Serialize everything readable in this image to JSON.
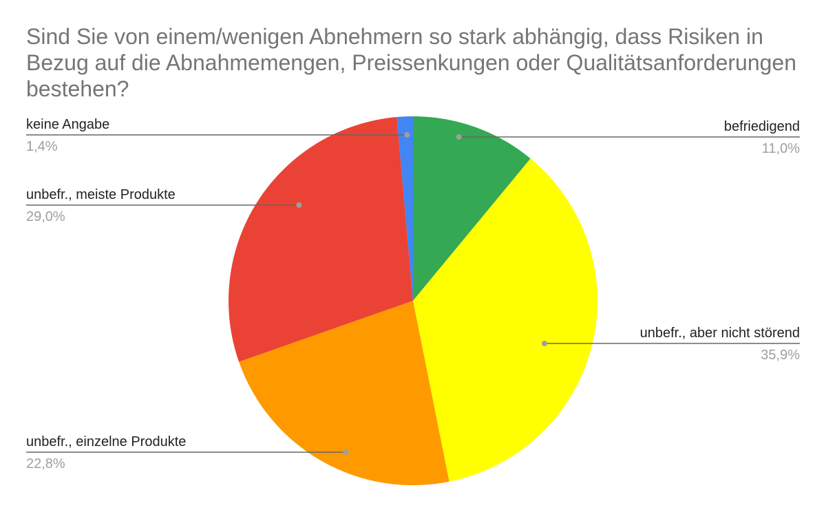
{
  "chart_data": {
    "type": "pie",
    "title": "Sind Sie von einem/wenigen Abnehmern so stark abhängig, dass Risiken in Bezug auf die Abnahmemengen, Preissenkungen oder Qualitätsanforderungen bestehen?",
    "legend": "labels-with-leader-lines",
    "start_angle_deg": 0,
    "direction": "clockwise",
    "slices": [
      {
        "label": "befriedigend",
        "value": 11.0,
        "display": "11,0%",
        "color": "#34a853"
      },
      {
        "label": "unbefr., aber nicht störend",
        "value": 35.9,
        "display": "35,9%",
        "color": "#ffff00"
      },
      {
        "label": "unbefr., einzelne Produkte",
        "value": 22.8,
        "display": "22,8%",
        "color": "#ff9900"
      },
      {
        "label": "unbefr., meiste Produkte",
        "value": 29.0,
        "display": "29,0%",
        "color": "#ea4335"
      },
      {
        "label": "keine Angabe",
        "value": 1.4,
        "display": "1,4%",
        "color": "#4285f4"
      }
    ]
  }
}
